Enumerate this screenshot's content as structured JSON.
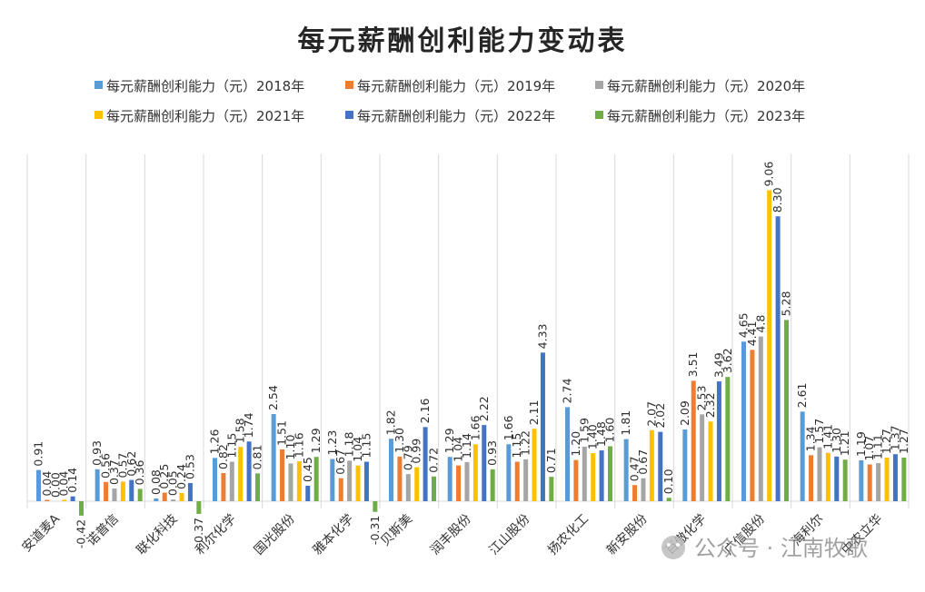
{
  "chart_data": {
    "type": "bar",
    "title": "每元薪酬创利能力变动表",
    "categories": [
      "安道麦A",
      "诺普信",
      "联化科技",
      "利尔化学",
      "国光股份",
      "雅本化学",
      "贝斯美",
      "润丰股份",
      "江山股份",
      "扬农化工",
      "新安股份",
      "百傲化学",
      "广信股份",
      "海利尔",
      "中农立华"
    ],
    "series": [
      {
        "name": "每元薪酬创利能力（元）2018年",
        "color": "#5B9BD5",
        "values": [
          0.91,
          0.93,
          0.08,
          1.26,
          2.54,
          1.23,
          1.82,
          1.29,
          1.66,
          2.74,
          1.81,
          2.09,
          4.65,
          2.61,
          1.19
        ]
      },
      {
        "name": "每元薪酬创利能力（元）2019年",
        "color": "#ED7D31",
        "values": [
          0.04,
          0.56,
          0.25,
          0.82,
          1.51,
          0.67,
          1.3,
          1.04,
          1.15,
          1.2,
          0.47,
          3.51,
          4.41,
          1.34,
          1.07
        ]
      },
      {
        "name": "每元薪酬创利能力（元）2020年",
        "color": "#A5A5A5",
        "values": [
          0.0,
          0.37,
          0.05,
          1.15,
          1.1,
          1.18,
          0.79,
          1.14,
          1.22,
          1.59,
          0.67,
          2.53,
          4.8,
          1.57,
          1.11
        ]
      },
      {
        "name": "每元薪酬创利能力（元）2021年",
        "color": "#FFC000",
        "values": [
          0.04,
          0.57,
          0.24,
          1.58,
          1.16,
          1.04,
          0.99,
          1.66,
          2.11,
          1.4,
          2.07,
          2.32,
          9.06,
          1.41,
          1.27
        ]
      },
      {
        "name": "每元薪酬创利能力（元）2022年",
        "color": "#4472C4",
        "values": [
          0.14,
          0.62,
          0.53,
          1.74,
          0.45,
          1.15,
          2.16,
          2.22,
          4.33,
          1.48,
          2.02,
          3.49,
          8.3,
          1.3,
          1.37
        ]
      },
      {
        "name": "每元薪酬创利能力（元）2023年",
        "color": "#70AD47",
        "values": [
          -0.42,
          0.36,
          -0.37,
          0.81,
          1.29,
          -0.31,
          0.72,
          0.93,
          0.71,
          1.6,
          0.1,
          3.62,
          5.28,
          1.21,
          1.27
        ]
      }
    ],
    "data_labels": [
      [
        "0.91",
        "0.04",
        "0.00",
        "0.04",
        "0.14",
        "-0.42"
      ],
      [
        "0.93",
        "0.56",
        "0.37",
        "0.57",
        "0.62",
        "0.36"
      ],
      [
        "0.08",
        "0.25",
        "0.05",
        "0.24",
        "0.53",
        "-0.37"
      ],
      [
        "1.26",
        "0.82",
        "1.15",
        "1.58",
        "1.74",
        "0.81"
      ],
      [
        "2.54",
        "1.51",
        "1.10",
        "1.16",
        "0.45",
        "1.29"
      ],
      [
        "1.23",
        "0.67",
        "1.18",
        "1.04",
        "1.15",
        "-0.31"
      ],
      [
        "1.82",
        "1.30",
        "0.79",
        "0.99",
        "2.16",
        "0.72"
      ],
      [
        "1.29",
        "1.04",
        "1.14",
        "1.66",
        "2.22",
        "0.93"
      ],
      [
        "1.66",
        "1.15",
        "1.22",
        "2.11",
        "4.33",
        "0.71"
      ],
      [
        "2.74",
        "1.20",
        "1.59",
        "1.40",
        "1.48",
        "1.60"
      ],
      [
        "1.81",
        "0.47",
        "0.67",
        "2.07",
        "2.02",
        "0.10"
      ],
      [
        "2.09",
        "3.51",
        "2.53",
        "2.32",
        "3.49",
        "3.62"
      ],
      [
        "4.65",
        "4.41",
        "4.8",
        "9.06",
        "8.30",
        "5.28"
      ],
      [
        "2.61",
        "1.34",
        "1.57",
        "1.41",
        "1.30",
        "1.21"
      ],
      [
        "1.19",
        "1.07",
        "1.11",
        "1.27",
        "1.37",
        "1.27"
      ]
    ],
    "ylim": [
      -0.6,
      10.0
    ],
    "grid": "vertical category separators",
    "legend_position": "top"
  },
  "watermark": {
    "text": "公众号 · 江南牧歌",
    "icon": "wechat-icon"
  }
}
